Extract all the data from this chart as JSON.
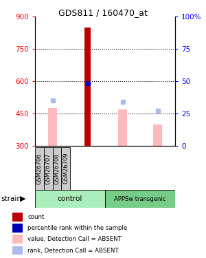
{
  "title": "GDS811 / 160470_at",
  "samples": [
    "GSM26706",
    "GSM26707",
    "GSM26708",
    "GSM26709"
  ],
  "ylim_left": [
    300,
    900
  ],
  "ylim_right": [
    0,
    100
  ],
  "yticks_left": [
    300,
    450,
    600,
    750,
    900
  ],
  "yticks_right": [
    0,
    25,
    50,
    75,
    100
  ],
  "count_index": 1,
  "count_value": 850,
  "count_color": "#bb0000",
  "percentile_index": 1,
  "percentile_value": 590,
  "percentile_color": "#0000bb",
  "absent_value_bars": [
    475,
    null,
    470,
    400
  ],
  "absent_value_color": "#ffbbbb",
  "absent_rank_dots": [
    510,
    null,
    505,
    462
  ],
  "absent_rank_color": "#aabbee",
  "plot_bg": "#ffffff",
  "sample_box_color": "#cccccc",
  "group_box_color_control": "#aaeebb",
  "group_box_color_appsw": "#77cc88",
  "legend_items": [
    {
      "label": "count",
      "color": "#bb0000"
    },
    {
      "label": "percentile rank within the sample",
      "color": "#0000bb"
    },
    {
      "label": "value, Detection Call = ABSENT",
      "color": "#ffbbbb"
    },
    {
      "label": "rank, Detection Call = ABSENT",
      "color": "#aabbee"
    }
  ]
}
